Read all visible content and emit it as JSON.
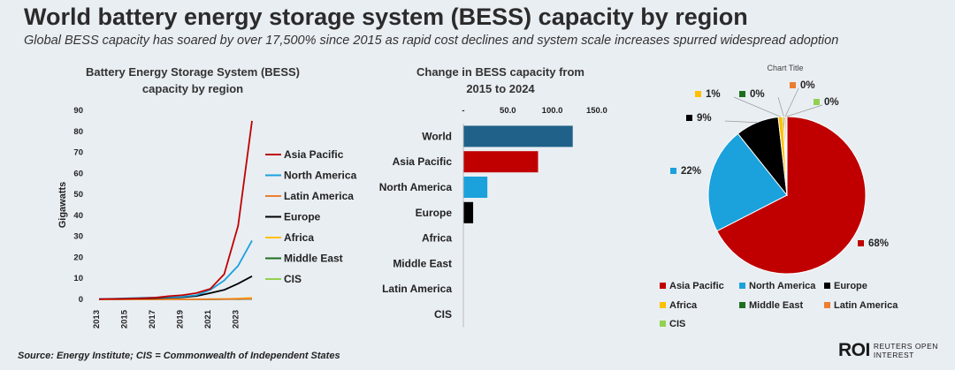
{
  "header": {
    "title": "World battery energy storage system (BESS) capacity by region",
    "subtitle": "Global BESS capacity has soared by over 17,500% since 2015 as rapid cost declines and system scale increases spurred widespread adoption"
  },
  "footer": {
    "source": "Source:  Energy Institute; CIS = Commonwealth of Independent States",
    "logo_mark": "ROI",
    "logo_line1": "REUTERS OPEN",
    "logo_line2": "INTEREST"
  },
  "colors": {
    "Asia Pacific": "#c00000",
    "North America": "#1ba1dc",
    "Latin America": "#ed7d31",
    "Europe": "#000000",
    "Africa": "#ffc000",
    "Middle East": "#1e6e1e",
    "CIS": "#92d050",
    "World": "#1f6188"
  },
  "chart_data": [
    {
      "type": "line",
      "title_line1": "Battery Energy Storage System (BESS)",
      "title_line2": "capacity by region",
      "ylabel": "Gigawatts",
      "xlabel": "",
      "ylim": [
        0,
        90
      ],
      "yticks": [
        0,
        10,
        20,
        30,
        40,
        50,
        60,
        70,
        80,
        90
      ],
      "x": [
        2013,
        2014,
        2015,
        2016,
        2017,
        2018,
        2019,
        2020,
        2021,
        2022,
        2023,
        2024
      ],
      "xtick_labels": [
        "2013",
        "2015",
        "2017",
        "2019",
        "2021",
        "2023"
      ],
      "xtick_values": [
        2013,
        2015,
        2017,
        2019,
        2021,
        2023
      ],
      "legend_position": "right",
      "series": [
        {
          "name": "Asia Pacific",
          "values": [
            0.1,
            0.2,
            0.3,
            0.5,
            0.8,
            1.5,
            2.0,
            3.0,
            5.0,
            12.0,
            35.0,
            85.0
          ]
        },
        {
          "name": "North America",
          "values": [
            0.2,
            0.3,
            0.5,
            0.7,
            0.9,
            1.0,
            1.3,
            2.0,
            4.5,
            9.0,
            16.0,
            28.0
          ]
        },
        {
          "name": "Latin America",
          "values": [
            0.0,
            0.0,
            0.0,
            0.0,
            0.0,
            0.0,
            0.0,
            0.0,
            0.1,
            0.1,
            0.2,
            0.3
          ]
        },
        {
          "name": "Europe",
          "values": [
            0.1,
            0.2,
            0.3,
            0.4,
            0.6,
            0.8,
            1.0,
            1.6,
            3.0,
            4.5,
            7.5,
            11.0
          ]
        },
        {
          "name": "Africa",
          "values": [
            0.0,
            0.0,
            0.0,
            0.0,
            0.0,
            0.0,
            0.0,
            0.1,
            0.1,
            0.2,
            0.4,
            0.7
          ]
        },
        {
          "name": "Middle East",
          "values": [
            0.0,
            0.0,
            0.0,
            0.0,
            0.0,
            0.0,
            0.0,
            0.0,
            0.0,
            0.1,
            0.1,
            0.2
          ]
        },
        {
          "name": "CIS",
          "values": [
            0.0,
            0.0,
            0.0,
            0.0,
            0.0,
            0.0,
            0.0,
            0.0,
            0.0,
            0.1,
            0.1,
            0.2
          ]
        }
      ]
    },
    {
      "type": "bar",
      "orientation": "horizontal",
      "title_line1": "Change in BESS capacity from",
      "title_line2": "2015 to 2024",
      "axis_position": "top",
      "xlim": [
        0,
        175
      ],
      "xticks": [
        0,
        50,
        100,
        150
      ],
      "xtick_labels": [
        "-",
        "50.0",
        "100.0",
        "150.0"
      ],
      "categories": [
        "World",
        "Asia Pacific",
        "North America",
        "Europe",
        "Africa",
        "Middle East",
        "Latin America",
        "CIS"
      ],
      "values": [
        123.0,
        84.0,
        27.0,
        11.0,
        0.0,
        0.0,
        0.0,
        0.0
      ]
    },
    {
      "type": "pie",
      "title": "Chart Title",
      "legend_position": "bottom",
      "slices": [
        {
          "name": "Asia Pacific",
          "value": 68,
          "label": "68%"
        },
        {
          "name": "North America",
          "value": 22,
          "label": "22%"
        },
        {
          "name": "Europe",
          "value": 9,
          "label": "9%"
        },
        {
          "name": "Africa",
          "value": 1,
          "label": "1%"
        },
        {
          "name": "Middle East",
          "value": 0.3,
          "label": "0%"
        },
        {
          "name": "Latin America",
          "value": 0.3,
          "label": "0%"
        },
        {
          "name": "CIS",
          "value": 0.2,
          "label": "0%"
        }
      ]
    }
  ]
}
